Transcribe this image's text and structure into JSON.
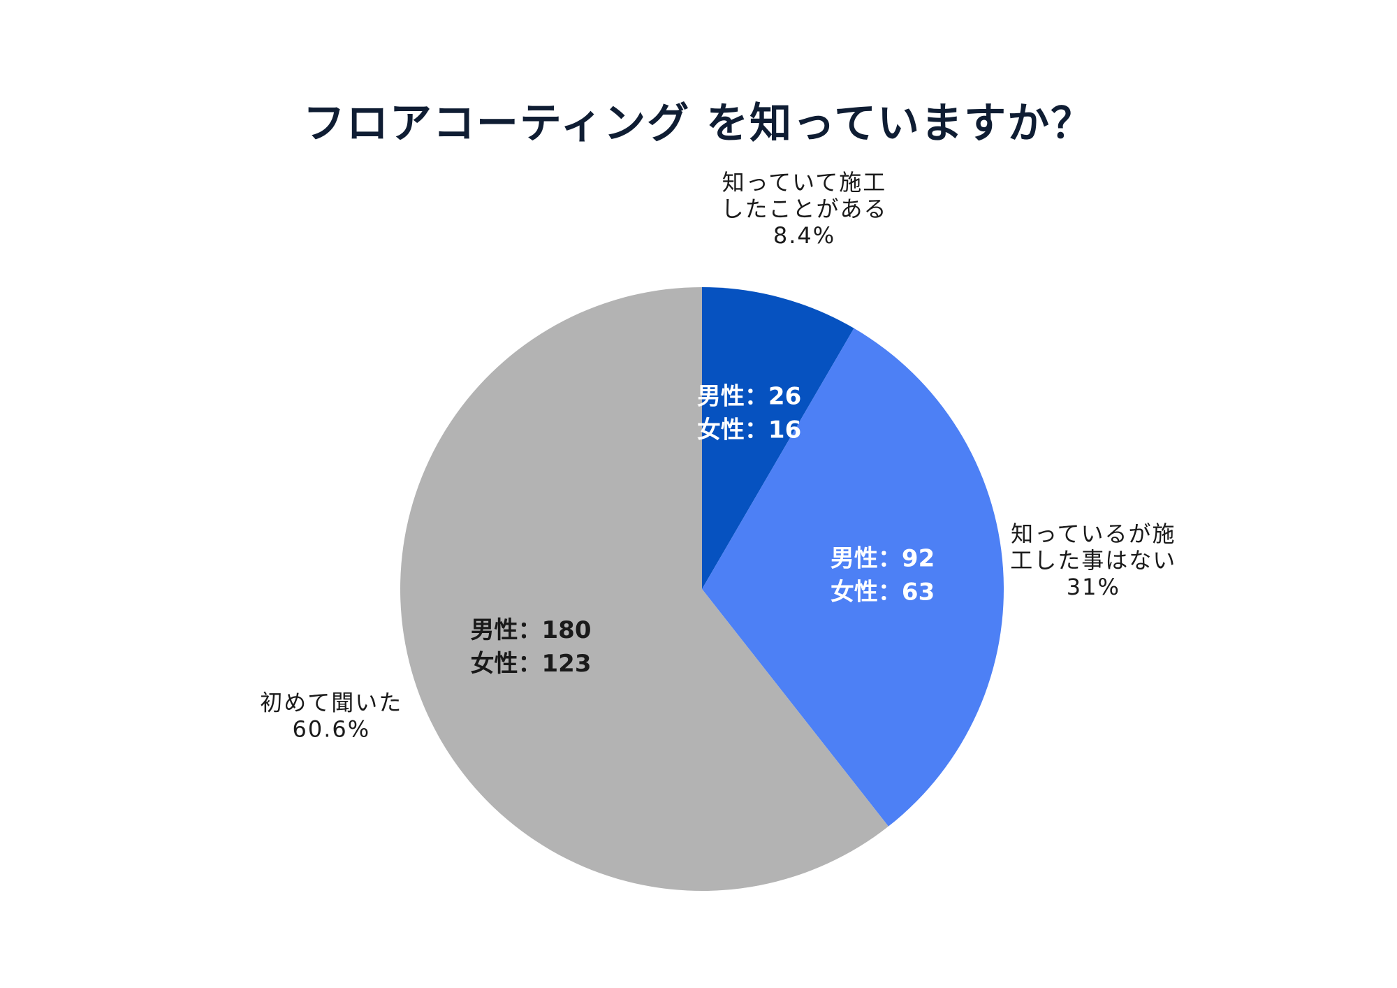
{
  "chart_data": {
    "type": "pie",
    "title": "フロアコーティング を知っていますか？",
    "start_angle": "top (12 o'clock), clockwise",
    "slices": [
      {
        "label_lines": [
          "知っていて施工",
          "したことがある"
        ],
        "percent_label": "8.4%",
        "value": 8.4,
        "color": "#0652c0",
        "inner_text_color": "#ffffff",
        "male_label": "男性：26",
        "female_label": "女性：16",
        "male": 26,
        "female": 16
      },
      {
        "label_lines": [
          "知っているが施",
          "工した事はない"
        ],
        "percent_label": "31%",
        "value": 31,
        "color": "#4d80f5",
        "inner_text_color": "#ffffff",
        "male_label": "男性：92",
        "female_label": "女性：63",
        "male": 92,
        "female": 63
      },
      {
        "label_lines": [
          "初めて聞いた"
        ],
        "percent_label": "60.6%",
        "value": 60.6,
        "color": "#b3b3b3",
        "inner_text_color": "#1a1a1a",
        "male_label": "男性：180",
        "female_label": "女性：123",
        "male": 180,
        "female": 123
      }
    ]
  }
}
